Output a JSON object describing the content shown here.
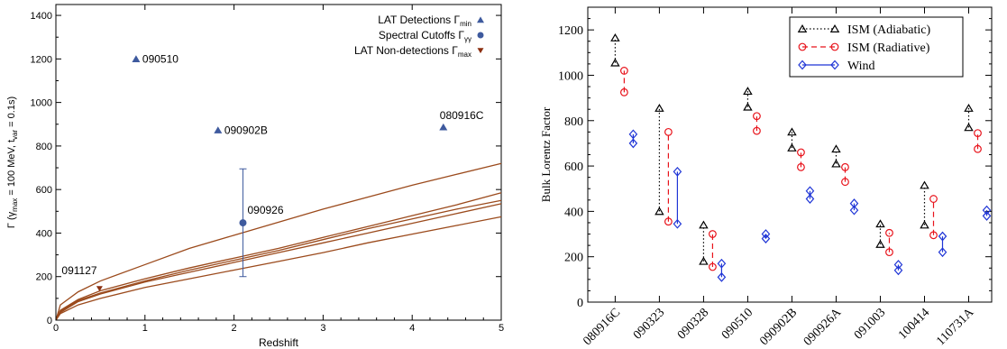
{
  "chart_data": [
    {
      "type": "scatter",
      "xlabel": "Redshift",
      "ylabel_main": "Γ (γ",
      "ylabel_sub1": "max",
      "ylabel_mid": " = 100 MeV, t",
      "ylabel_sub2": "var",
      "ylabel_end": " = 0.1s)",
      "xlim": [
        0,
        5
      ],
      "ylim": [
        0,
        1450
      ],
      "x_ticks": [
        0,
        1,
        2,
        3,
        4,
        5
      ],
      "y_ticks": [
        0,
        200,
        400,
        600,
        800,
        1000,
        1200,
        1400
      ],
      "legend": [
        {
          "label": "LAT Detections  Γ",
          "sub": "min",
          "marker": "triangle-up",
          "color": "#3e5a9e"
        },
        {
          "label": "Spectral Cutoffs  Γ",
          "sub": "γγ",
          "marker": "circle",
          "color": "#3e5a9e"
        },
        {
          "label": "LAT Non-detections  Γ",
          "sub": "max",
          "marker": "triangle-down",
          "color": "#8b2e0f"
        }
      ],
      "legend_position": "top-right",
      "detections": [
        {
          "label": "090510",
          "x": 0.9,
          "y": 1200
        },
        {
          "label": "090902B",
          "x": 1.82,
          "y": 873
        },
        {
          "label": "080916C",
          "x": 4.35,
          "y": 887
        }
      ],
      "cutoffs": [
        {
          "label": "090926",
          "x": 2.1,
          "y": 447,
          "err_low": 200,
          "err_high": 695
        }
      ],
      "nondetections": [
        {
          "label": "091127",
          "x": 0.49,
          "y": 145
        }
      ],
      "curves": {
        "color": "#9b4a1c",
        "x": [
          0.05,
          0.25,
          0.5,
          1.0,
          1.5,
          2.0,
          2.5,
          3.0,
          3.5,
          4.0,
          4.5,
          5.0
        ],
        "series": [
          [
            70,
            130,
            180,
            255,
            330,
            390,
            450,
            510,
            565,
            620,
            670,
            720
          ],
          [
            45,
            95,
            135,
            190,
            240,
            285,
            330,
            380,
            430,
            480,
            530,
            585
          ],
          [
            40,
            90,
            125,
            180,
            230,
            275,
            320,
            370,
            420,
            465,
            510,
            550
          ],
          [
            35,
            85,
            120,
            175,
            220,
            265,
            310,
            355,
            400,
            445,
            490,
            535
          ],
          [
            30,
            70,
            100,
            150,
            190,
            230,
            270,
            310,
            355,
            395,
            435,
            475
          ]
        ]
      },
      "colors": {
        "detection": "#3e5a9e",
        "nondetection": "#8b2e0f",
        "curve": "#9b4a1c"
      }
    },
    {
      "type": "scatter",
      "ylabel": "Bulk Lorentz Factor",
      "xlabel": "",
      "ylim": [
        0,
        1300
      ],
      "y_ticks": [
        0,
        200,
        400,
        600,
        800,
        1000,
        1200
      ],
      "categories": [
        "080916C",
        "090323",
        "090328",
        "090510",
        "090902B",
        "090926A",
        "091003",
        "100414",
        "110731A"
      ],
      "legend_position": "top-right",
      "series": [
        {
          "name": "ISM (Adiabatic)",
          "color": "#000000",
          "marker": "triangle",
          "line": "dotted",
          "values": [
            [
              1055,
              1165
            ],
            [
              400,
              855
            ],
            [
              180,
              340
            ],
            [
              860,
              930
            ],
            [
              680,
              750
            ],
            [
              610,
              675
            ],
            [
              255,
              345
            ],
            [
              340,
              515
            ],
            [
              770,
              855
            ]
          ]
        },
        {
          "name": "ISM (Radiative)",
          "color": "#e8131b",
          "marker": "circle",
          "line": "dashed",
          "values": [
            [
              925,
              1020
            ],
            [
              355,
              750
            ],
            [
              155,
              300
            ],
            [
              755,
              820
            ],
            [
              595,
              660
            ],
            [
              530,
              595
            ],
            [
              220,
              305
            ],
            [
              295,
              455
            ],
            [
              675,
              745
            ]
          ]
        },
        {
          "name": "Wind",
          "color": "#1f35d6",
          "marker": "diamond",
          "line": "solid",
          "values": [
            [
              700,
              740
            ],
            [
              345,
              575
            ],
            [
              110,
              170
            ],
            [
              280,
              300
            ],
            [
              455,
              490
            ],
            [
              405,
              435
            ],
            [
              140,
              165
            ],
            [
              220,
              290
            ],
            [
              380,
              405
            ]
          ]
        }
      ]
    }
  ]
}
